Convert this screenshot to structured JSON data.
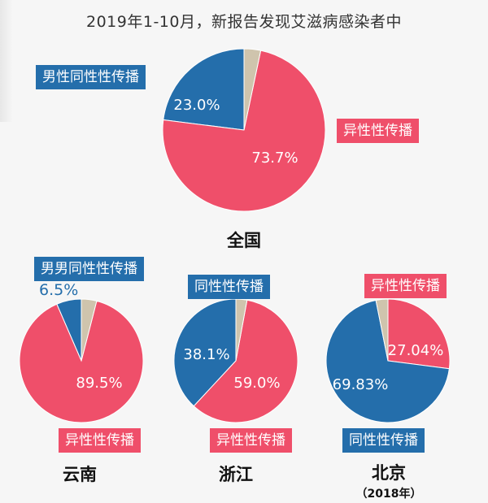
{
  "colors": {
    "heterosexual": "#ef4f6a",
    "homosexual": "#246eab",
    "other": "#cfc4ad",
    "background": "#f6f6f6"
  },
  "chart_data": {
    "type": "pie",
    "title": "2019年1-10月，新报告发现艾滋病感染者中",
    "charts": [
      {
        "id": "national",
        "label": "全国",
        "slices": [
          {
            "name": "男性同性性传播",
            "value": 23.0,
            "display": "23.0%",
            "color": "#246eab"
          },
          {
            "name": "异性性传播",
            "value": 73.7,
            "display": "73.7%",
            "color": "#ef4f6a"
          },
          {
            "name": "",
            "value": 3.3,
            "display": "",
            "color": "#cfc4ad"
          }
        ]
      },
      {
        "id": "yunnan",
        "label": "云南",
        "slices": [
          {
            "name": "男男同性性传播",
            "value": 6.5,
            "display": "6.5%",
            "color": "#246eab"
          },
          {
            "name": "异性性传播",
            "value": 89.5,
            "display": "89.5%",
            "color": "#ef4f6a"
          },
          {
            "name": "",
            "value": 4.0,
            "display": "",
            "color": "#cfc4ad"
          }
        ]
      },
      {
        "id": "zhejiang",
        "label": "浙江",
        "slices": [
          {
            "name": "同性性传播",
            "value": 38.1,
            "display": "38.1%",
            "color": "#246eab"
          },
          {
            "name": "异性性传播",
            "value": 59.0,
            "display": "59.0%",
            "color": "#ef4f6a"
          },
          {
            "name": "",
            "value": 2.9,
            "display": "",
            "color": "#cfc4ad"
          }
        ]
      },
      {
        "id": "beijing",
        "label": "北京",
        "note": "（2018年）",
        "slices": [
          {
            "name": "异性性传播",
            "value": 27.04,
            "display": "27.04%",
            "color": "#ef4f6a"
          },
          {
            "name": "同性性传播",
            "value": 69.83,
            "display": "69.83%",
            "color": "#246eab"
          },
          {
            "name": "",
            "value": 3.13,
            "display": "",
            "color": "#cfc4ad"
          }
        ]
      }
    ]
  }
}
